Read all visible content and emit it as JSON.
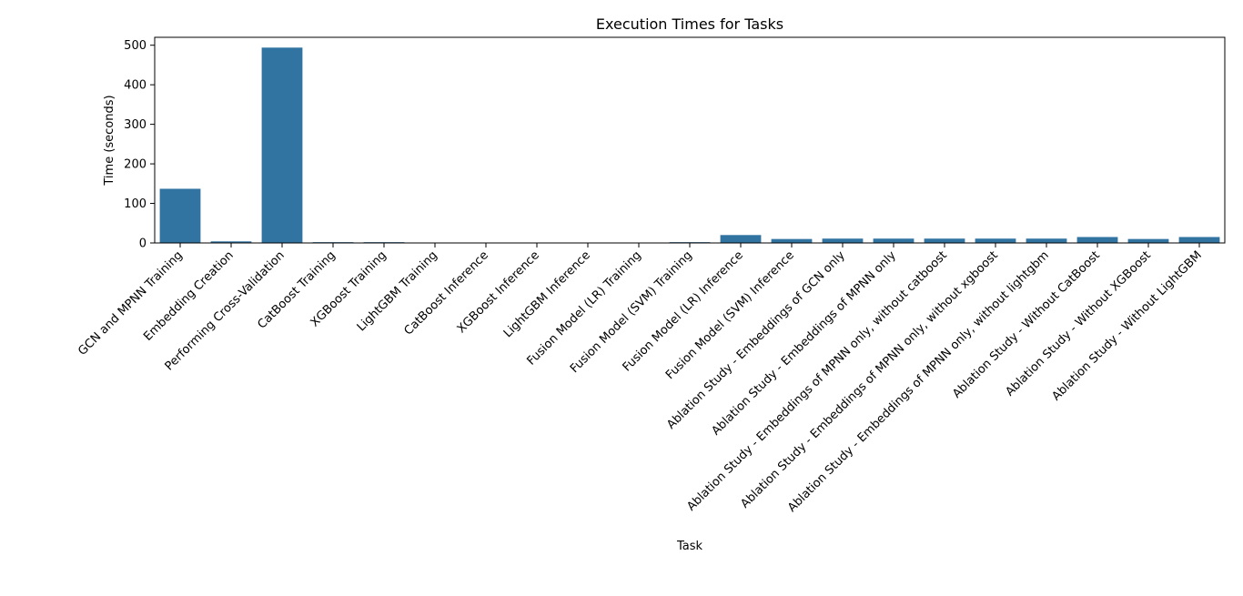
{
  "chart_data": {
    "type": "bar",
    "title": "Execution Times for Tasks",
    "xlabel": "Task",
    "ylabel": "Time (seconds)",
    "ylim": [
      0,
      520
    ],
    "yticks": [
      0,
      100,
      200,
      300,
      400,
      500
    ],
    "grid": false,
    "bar_color": "#3274a1",
    "categories": [
      "GCN and MPNN Training",
      "Embedding Creation",
      "Performing Cross-Validation",
      "CatBoost Training",
      "XGBoost Training",
      "LightGBM Training",
      "CatBoost Inference",
      "XGBoost Inference",
      "LightGBM Inference",
      "Fusion Model (LR) Training",
      "Fusion Model (SVM) Training",
      "Fusion Model (LR) Inference",
      "Fusion Model (SVM) Inference",
      "Ablation Study - Embeddings of GCN only",
      "Ablation Study - Embeddings of MPNN only",
      "Ablation Study - Embeddings of MPNN only, without catboost",
      "Ablation Study - Embeddings of MPNN only, without xgboost",
      "Ablation Study - Embeddings of MPNN only, without lightgbm",
      "Ablation Study - Without CatBoost",
      "Ablation Study - Without XGBoost",
      "Ablation Study - Without LightGBM"
    ],
    "values": [
      137,
      4,
      494,
      2,
      2,
      0.5,
      0.3,
      0.3,
      0.3,
      0.5,
      2,
      20,
      10,
      11,
      11,
      11,
      11,
      11,
      15,
      10,
      15
    ]
  }
}
